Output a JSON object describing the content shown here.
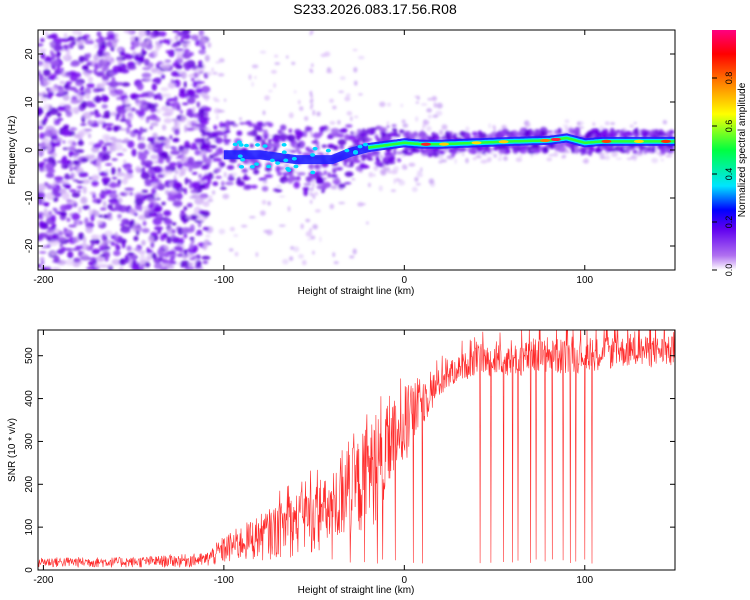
{
  "title": "S233.2026.083.17.56.R08",
  "chart_data": [
    {
      "type": "heatmap",
      "title": "S233.2026.083.17.56.R08",
      "xlabel": "Height of straight line (km)",
      "ylabel": "Frequency (Hz)",
      "xlim": [
        -203,
        150
      ],
      "ylim": [
        -25,
        25
      ],
      "xticks": [
        -200,
        -100,
        0,
        100
      ],
      "xtick_labels": [
        "-200",
        "-100",
        "0",
        "100"
      ],
      "yticks": [
        -20,
        -10,
        0,
        10,
        20
      ],
      "ytick_labels": [
        "-20",
        "-10",
        "0",
        "10",
        "20"
      ],
      "colorbar": {
        "label": "Normalized spectral amplitude",
        "range": [
          0,
          1
        ],
        "ticks": [
          0.0,
          0.2,
          0.4,
          0.6,
          0.8
        ],
        "tick_labels": [
          "0.0",
          "0.2",
          "0.4",
          "0.6",
          "0.8"
        ],
        "colormap_stops": [
          "#ffffff",
          "#b070f0",
          "#6000f0",
          "#0000ff",
          "#00e5ff",
          "#00ff40",
          "#ffff00",
          "#ff8000",
          "#ff0000",
          "#ff0080"
        ]
      },
      "ridge": {
        "description_points_x_km": [
          -100,
          -80,
          -60,
          -40,
          -30,
          -20,
          -10,
          0,
          10,
          20,
          40,
          60,
          80,
          90,
          100,
          110,
          150
        ],
        "frequency_hz": [
          -1,
          -1,
          -2,
          -2,
          -0.5,
          0.5,
          1,
          1.5,
          1.2,
          1.2,
          1.5,
          1.8,
          2,
          2.5,
          1.5,
          1.8,
          1.8
        ]
      }
    },
    {
      "type": "line",
      "xlabel": "Height of straight line (km)",
      "ylabel": "SNR (10 * v/v)",
      "xlim": [
        -203,
        150
      ],
      "ylim": [
        0,
        560
      ],
      "xticks": [
        -200,
        -100,
        0,
        100
      ],
      "xtick_labels": [
        "-200",
        "-100",
        "0",
        "100"
      ],
      "yticks": [
        0,
        100,
        200,
        300,
        400,
        500
      ],
      "ytick_labels": [
        "0",
        "100",
        "200",
        "300",
        "400",
        "500"
      ],
      "series": [
        {
          "name": "SNR",
          "color": "#ff2a2a",
          "envelope_x_km": [
            -203,
            -150,
            -110,
            -100,
            -80,
            -60,
            -40,
            -30,
            -20,
            -10,
            0,
            10,
            20,
            30,
            40,
            60,
            80,
            100,
            120,
            150
          ],
          "envelope_upper": [
            30,
            30,
            40,
            80,
            130,
            180,
            220,
            280,
            340,
            380,
            420,
            450,
            470,
            500,
            520,
            530,
            540,
            540,
            545,
            545
          ],
          "envelope_lower": [
            5,
            5,
            5,
            10,
            20,
            30,
            40,
            60,
            80,
            150,
            250,
            330,
            400,
            440,
            450,
            450,
            450,
            460,
            470,
            470
          ],
          "dropout_x_km": [
            -40,
            -30,
            -22,
            -15,
            -12,
            -5,
            5,
            10,
            42,
            48,
            55,
            60,
            63,
            70,
            73,
            78,
            82,
            88,
            92,
            95,
            100,
            104
          ],
          "dropout_min": 15
        }
      ]
    }
  ]
}
